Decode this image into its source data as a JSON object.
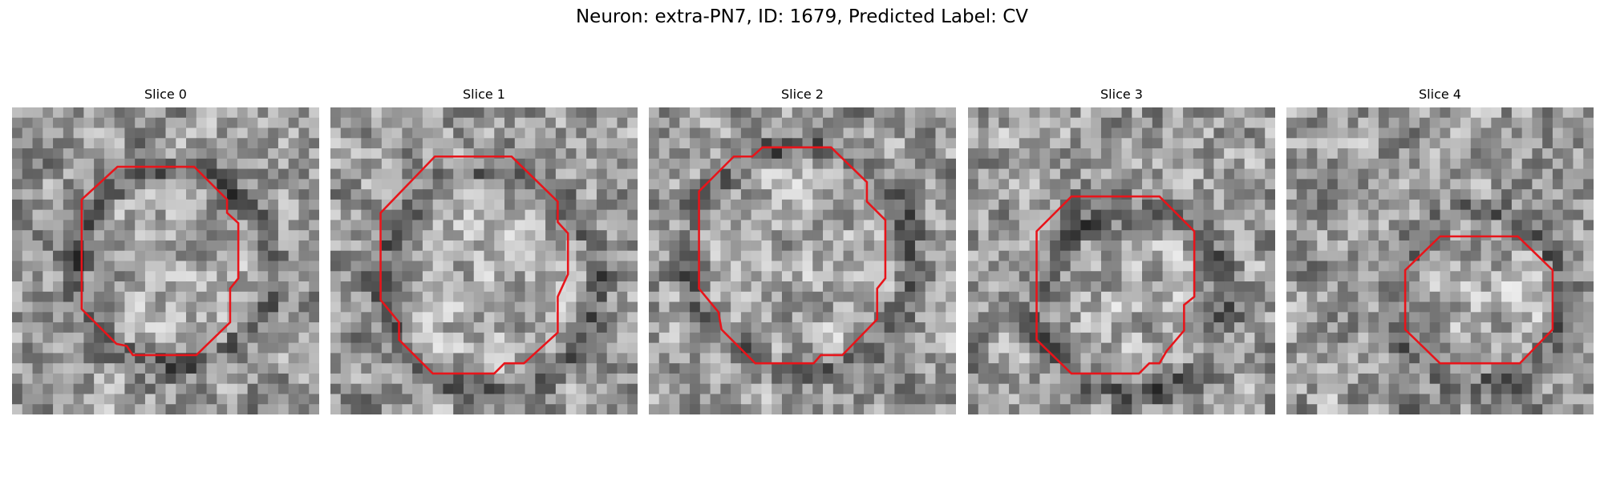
{
  "figure": {
    "title": "Neuron: extra-PN7, ID: 1679, Predicted Label: CV"
  },
  "panels": [
    {
      "title": "Slice 0"
    },
    {
      "title": "Slice 1"
    },
    {
      "title": "Slice 2"
    },
    {
      "title": "Slice 3"
    },
    {
      "title": "Slice 4"
    }
  ]
}
